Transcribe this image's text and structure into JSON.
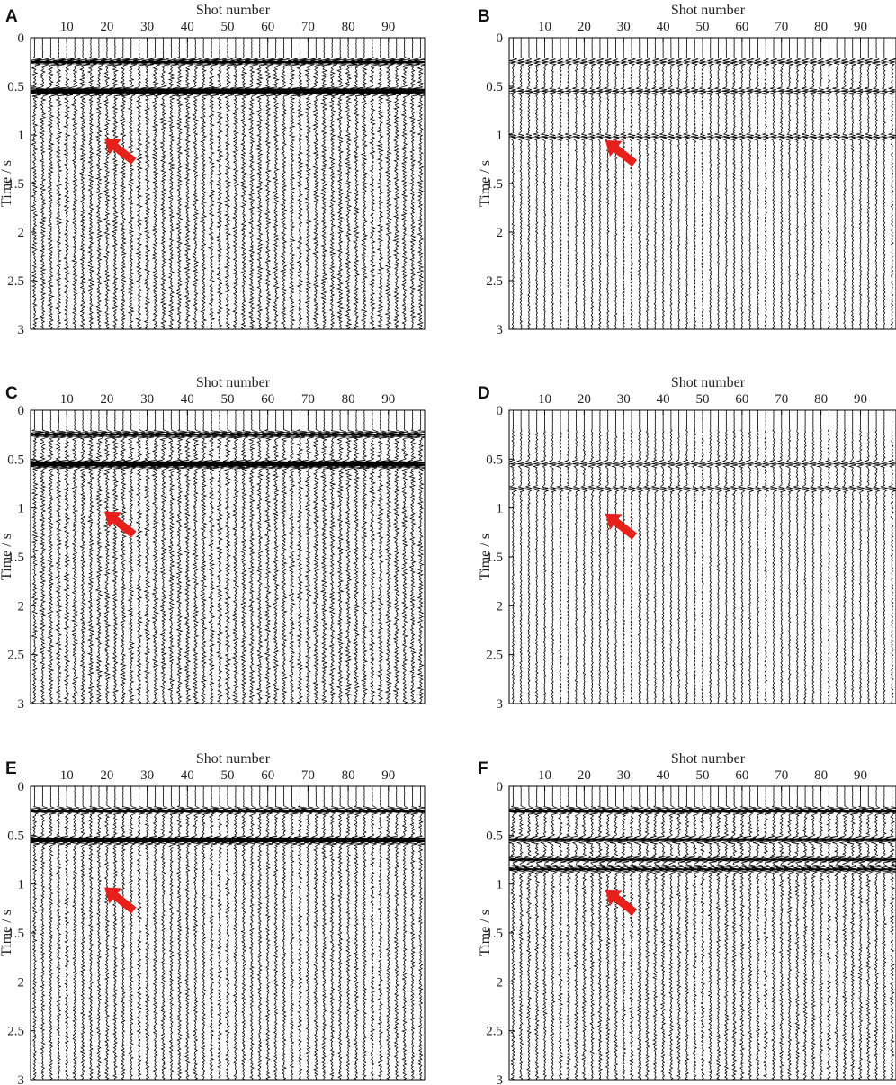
{
  "figure": {
    "colors": {
      "trace": "#000000",
      "arrow": "#e8201c",
      "frame": "#000000"
    }
  },
  "chart_data": [
    {
      "type": "line",
      "panel": "A",
      "xlabel": "Shot number",
      "ylabel": "Time / s",
      "x_ticks": [
        "10",
        "20",
        "30",
        "40",
        "50",
        "60",
        "70",
        "80",
        "90"
      ],
      "y_ticks": [
        "0",
        "0.5",
        "1",
        "1.5",
        "2",
        "2.5",
        "3"
      ],
      "xlim": [
        1,
        99
      ],
      "ylim": [
        0,
        3
      ],
      "n_traces": 49,
      "events_s": [
        0.25,
        0.54,
        0.56
      ],
      "amplitude": "strong",
      "arrow_at": {
        "shot": 22,
        "time_s": 1.12
      }
    },
    {
      "type": "line",
      "panel": "B",
      "xlabel": "Shot number",
      "ylabel": "Time / s",
      "x_ticks": [
        "10",
        "20",
        "30",
        "40",
        "50",
        "60",
        "70",
        "80",
        "90"
      ],
      "y_ticks": [
        "0",
        "0.5",
        "1",
        "1.5",
        "2",
        "2.5",
        "3"
      ],
      "xlim": [
        1,
        99
      ],
      "ylim": [
        0,
        3
      ],
      "n_traces": 49,
      "events_s": [
        0.25,
        0.55,
        1.02
      ],
      "amplitude": "weak",
      "arrow_at": {
        "shot": 28,
        "time_s": 1.14
      }
    },
    {
      "type": "line",
      "panel": "C",
      "xlabel": "Shot number",
      "ylabel": "Time / s",
      "x_ticks": [
        "10",
        "20",
        "30",
        "40",
        "50",
        "60",
        "70",
        "80",
        "90"
      ],
      "y_ticks": [
        "0",
        "0.5",
        "1",
        "1.5",
        "2",
        "2.5",
        "3"
      ],
      "xlim": [
        1,
        99
      ],
      "ylim": [
        0,
        3
      ],
      "n_traces": 49,
      "events_s": [
        0.25,
        0.54,
        0.56
      ],
      "amplitude": "strong",
      "arrow_at": {
        "shot": 22,
        "time_s": 1.12
      }
    },
    {
      "type": "line",
      "panel": "D",
      "xlabel": "Shot number",
      "ylabel": "Time / s",
      "x_ticks": [
        "10",
        "20",
        "30",
        "40",
        "50",
        "60",
        "70",
        "80",
        "90"
      ],
      "y_ticks": [
        "0",
        "0.5",
        "1",
        "1.5",
        "2",
        "2.5",
        "3"
      ],
      "xlim": [
        1,
        99
      ],
      "ylim": [
        0,
        3
      ],
      "n_traces": 49,
      "events_s": [
        0.55,
        0.8
      ],
      "amplitude": "weak",
      "arrow_at": {
        "shot": 28,
        "time_s": 1.14
      }
    },
    {
      "type": "line",
      "panel": "E",
      "xlabel": "Shot number",
      "ylabel": "Time / s",
      "x_ticks": [
        "10",
        "20",
        "30",
        "40",
        "50",
        "60",
        "70",
        "80",
        "90"
      ],
      "y_ticks": [
        "0",
        "0.5",
        "1",
        "1.5",
        "2",
        "2.5",
        "3"
      ],
      "xlim": [
        1,
        99
      ],
      "ylim": [
        0,
        3
      ],
      "n_traces": 49,
      "events_s": [
        0.25,
        0.54,
        0.56
      ],
      "amplitude": "medium",
      "arrow_at": {
        "shot": 22,
        "time_s": 1.12
      }
    },
    {
      "type": "line",
      "panel": "F",
      "xlabel": "Shot number",
      "ylabel": "Time / s",
      "x_ticks": [
        "10",
        "20",
        "30",
        "40",
        "50",
        "60",
        "70",
        "80",
        "90"
      ],
      "y_ticks": [
        "0",
        "0.5",
        "1",
        "1.5",
        "2",
        "2.5",
        "3"
      ],
      "xlim": [
        1,
        99
      ],
      "ylim": [
        0,
        3
      ],
      "n_traces": 49,
      "events_s": [
        0.25,
        0.55,
        0.75,
        0.85
      ],
      "amplitude": "medium",
      "arrow_at": {
        "shot": 28,
        "time_s": 1.14
      }
    }
  ]
}
